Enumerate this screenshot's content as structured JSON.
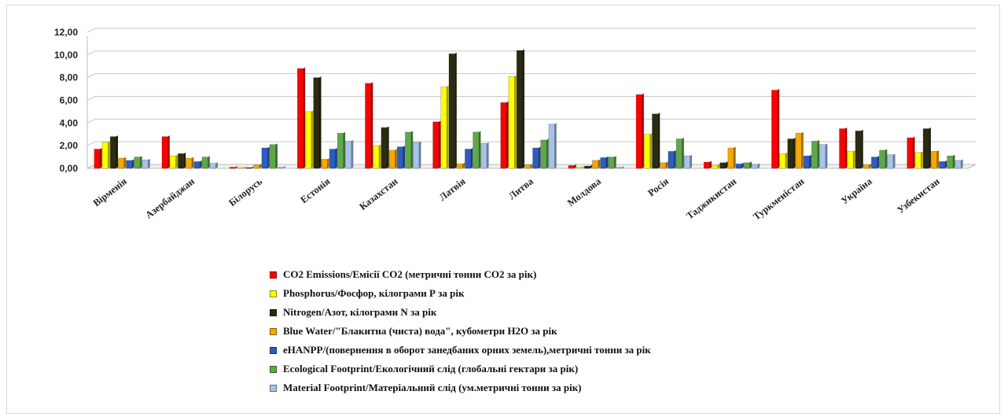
{
  "chart_data": {
    "type": "bar",
    "title": "",
    "xlabel": "",
    "ylabel": "",
    "ylim": [
      0,
      12
    ],
    "yticks": [
      "0,00",
      "2,00",
      "4,00",
      "6,00",
      "8,00",
      "10,00",
      "12,00"
    ],
    "grid": true,
    "legend_position": "bottom",
    "categories": [
      "Вірменія",
      "Азербайджан",
      "Білорусь",
      "Естонія",
      "Казахстан",
      "Латвія",
      "Литва",
      "Молдова",
      "Росія",
      "Таджикистан",
      "Туркменістан",
      "Україна",
      "Узбекистан"
    ],
    "series": [
      {
        "name": "CO2 Emissions/Емісії CO2 (метричні тонни CO2 за рік)",
        "color": "#ff0000",
        "values": [
          1.7,
          2.8,
          0.1,
          8.8,
          7.5,
          4.1,
          5.8,
          0.25,
          6.5,
          0.55,
          6.9,
          3.5,
          2.7
        ]
      },
      {
        "name": "Phosphorus/Фосфор, кілограми Р за рік",
        "color": "#ffff00",
        "values": [
          2.3,
          1.1,
          0.05,
          5.0,
          2.0,
          7.2,
          8.1,
          0.1,
          3.0,
          0.25,
          1.3,
          1.5,
          1.4
        ]
      },
      {
        "name": "Nitrogen/Азот, кілограми N за рік",
        "color": "#2b2b10",
        "values": [
          2.8,
          1.3,
          0.05,
          8.0,
          3.6,
          10.1,
          10.4,
          0.2,
          4.8,
          0.5,
          2.6,
          3.3,
          3.5
        ]
      },
      {
        "name": "Blue Water/\"Блакитна  (чиста) вода\", кубометри H2O за рік",
        "color": "#f5a800",
        "values": [
          0.9,
          0.9,
          0.3,
          0.8,
          1.6,
          0.4,
          0.3,
          0.7,
          0.5,
          1.8,
          3.1,
          0.3,
          1.5
        ]
      },
      {
        "name": "eHANPP/(повернення в оборот занедбаних орних земель),метричні тонни  за рік",
        "color": "#2e5dbf",
        "values": [
          0.7,
          0.6,
          1.8,
          1.7,
          1.9,
          1.7,
          1.8,
          0.95,
          1.5,
          0.4,
          1.1,
          1.0,
          0.6
        ]
      },
      {
        "name": "Ecological Footprint/Екологічний слід (глобальні гектари за рік)",
        "color": "#5fa84a",
        "values": [
          1.0,
          1.0,
          2.1,
          3.1,
          3.2,
          3.2,
          2.5,
          1.0,
          2.6,
          0.5,
          2.4,
          1.6,
          1.1
        ]
      },
      {
        "name": "Material Footprint/Матеріальний слід (ум.метричні тонни за рік)",
        "color": "#a7c3ea",
        "values": [
          0.75,
          0.45,
          0.1,
          2.4,
          2.3,
          2.2,
          3.9,
          0.1,
          1.1,
          0.35,
          2.1,
          1.2,
          0.7
        ]
      }
    ]
  }
}
